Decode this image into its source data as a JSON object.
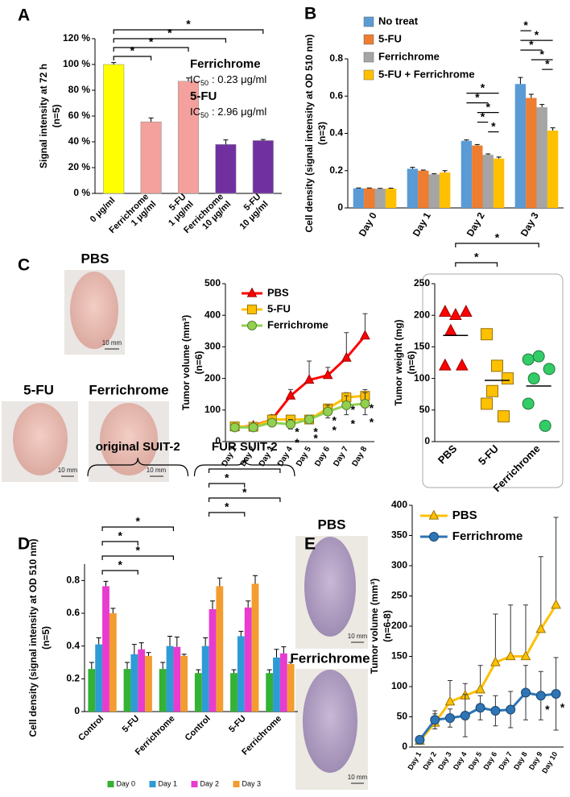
{
  "photos": [
    {
      "label": "PBS",
      "scale_bar": "10 mm"
    },
    {
      "label": "5-FU",
      "scale_bar": "10 mm"
    },
    {
      "label": "Ferrichrome",
      "scale_bar": "10 mm"
    },
    {
      "label": "PBS",
      "scale_bar": "10 mm"
    },
    {
      "label": "Ferrichrome",
      "scale_bar": "10 mm"
    }
  ],
  "chart_data": [
    {
      "type": "bar",
      "panel": "A",
      "categories": [
        [
          "0 μg/ml"
        ],
        [
          "Ferrichrome",
          "1 μg/ml"
        ],
        [
          "5-FU",
          "1 μg/ml"
        ],
        [
          "Ferrichrome",
          "10 μg/ml"
        ],
        [
          "5-FU",
          "10 μg/ml"
        ]
      ],
      "values": [
        100,
        55.5,
        87,
        38,
        41
      ],
      "errors": [
        1.5,
        3,
        2.5,
        3.5,
        0.8
      ],
      "colors": [
        "#ffff00",
        "#f4a09c",
        "#f4a09c",
        "#7030a0",
        "#7030a0"
      ],
      "ylabel": [
        "Signal intensity at 72 h",
        "(n=5)"
      ],
      "ylim": [
        0,
        120
      ],
      "yticks": [
        {
          "value": 0,
          "label": "0 %"
        },
        {
          "value": 20,
          "label": "20 %"
        },
        {
          "value": 40,
          "label": "40 %"
        },
        {
          "value": 60,
          "label": "60 %"
        },
        {
          "value": 80,
          "label": "80 %"
        },
        {
          "value": 100,
          "label": "100 %"
        },
        {
          "value": 120,
          "label": "120 %"
        }
      ],
      "significance": [
        {
          "from": 0,
          "to": 1,
          "label": "*"
        },
        {
          "from": 0,
          "to": 2,
          "label": "*"
        },
        {
          "from": 0,
          "to": 3,
          "label": "*"
        },
        {
          "from": 0,
          "to": 4,
          "label": "*"
        }
      ],
      "annotations": [
        {
          "title": "Ferrichrome",
          "prefix": "IC",
          "subscript": "50",
          "text": ": 0.23 μg/ml"
        },
        {
          "title": "5-FU",
          "prefix": "IC",
          "subscript": "50",
          "text": ": 2.96 μg/ml"
        }
      ]
    },
    {
      "type": "bar",
      "panel": "B",
      "categories": [
        "Day 0",
        "Day 1",
        "Day 2",
        "Day 3"
      ],
      "series": [
        {
          "name": "No treat",
          "color": "#5b9bd5",
          "values": [
            0.105,
            0.21,
            0.36,
            0.665
          ],
          "errors": [
            0.002,
            0.008,
            0.005,
            0.035
          ]
        },
        {
          "name": "5-FU",
          "color": "#ed7d31",
          "values": [
            0.105,
            0.2,
            0.335,
            0.59
          ],
          "errors": [
            0.002,
            0.003,
            0.005,
            0.02
          ]
        },
        {
          "name": "Ferrichrome",
          "color": "#a5a5a5",
          "values": [
            0.103,
            0.18,
            0.285,
            0.54
          ],
          "errors": [
            0.002,
            0.003,
            0.005,
            0.015
          ]
        },
        {
          "name": "5-FU + Ferrichrome",
          "color": "#ffc000",
          "values": [
            0.104,
            0.19,
            0.265,
            0.415
          ],
          "errors": [
            0.002,
            0.01,
            0.008,
            0.015
          ]
        }
      ],
      "ylabel": [
        "Cell density (signal intensity at OD 510 nm)",
        "(n=3)"
      ],
      "ylim": [
        0,
        0.8
      ],
      "yticks": [
        0,
        0.2,
        0.4,
        0.6,
        0.8
      ],
      "legend": "upper left",
      "significance": [
        {
          "category": 2,
          "from": 2,
          "to": 3,
          "label": "*"
        },
        {
          "category": 2,
          "from": 1,
          "to": 2,
          "label": "*"
        },
        {
          "category": 2,
          "from": 1,
          "to": 3,
          "label": "*"
        },
        {
          "category": 2,
          "from": 0,
          "to": 2,
          "label": "*"
        },
        {
          "category": 2,
          "from": 0,
          "to": 3,
          "label": "*"
        },
        {
          "category": 3,
          "from": 2,
          "to": 3,
          "label": "*"
        },
        {
          "category": 3,
          "from": 1,
          "to": 3,
          "label": "*"
        },
        {
          "category": 3,
          "from": 0,
          "to": 2,
          "label": "*"
        },
        {
          "category": 3,
          "from": 0,
          "to": 3,
          "label": "*"
        },
        {
          "category": 3,
          "from": 0,
          "to": 1,
          "label": "*"
        }
      ]
    },
    {
      "type": "line",
      "panel": "C",
      "categories": [
        "Day 1",
        "Day 2",
        "Day 3",
        "Day 4",
        "Day 5",
        "Day 6",
        "Day 7",
        "Day 8"
      ],
      "series": [
        {
          "name": "PBS",
          "color": "#ff0000",
          "marker": "triangle",
          "values": [
            45,
            50,
            70,
            145,
            195,
            210,
            265,
            335
          ],
          "errors": [
            5,
            8,
            15,
            20,
            60,
            25,
            80,
            70
          ],
          "error_direction": "up"
        },
        {
          "name": "5-FU",
          "color": "#ffc000",
          "marker": "square",
          "values": [
            48,
            47,
            70,
            70,
            70,
            105,
            140,
            145
          ],
          "errors": [
            5,
            5,
            8,
            10,
            8,
            10,
            15,
            20
          ],
          "error_direction": "both"
        },
        {
          "name": "Ferrichrome",
          "color": "#92d050",
          "marker": "circle",
          "values": [
            45,
            45,
            60,
            55,
            70,
            95,
            115,
            120
          ],
          "errors": [
            5,
            5,
            8,
            15,
            12,
            20,
            30,
            35
          ],
          "error_direction": "both"
        }
      ],
      "ylabel": [
        "Tumor volume (mm³)",
        "(n=6)"
      ],
      "ylim": [
        0,
        500
      ],
      "yticks": [
        0,
        100,
        200,
        300,
        400,
        500
      ],
      "legend": "upper left",
      "significance": [
        {
          "category": 3,
          "series": 1,
          "label": "*"
        },
        {
          "category": 3,
          "series": 2,
          "label": "*"
        },
        {
          "category": 4,
          "series": 1,
          "label": "*"
        },
        {
          "category": 4,
          "series": 2,
          "label": "*"
        },
        {
          "category": 5,
          "series": 1,
          "label": "*"
        },
        {
          "category": 5,
          "series": 2,
          "label": "*"
        },
        {
          "category": 6,
          "series": 1,
          "label": "*"
        },
        {
          "category": 6,
          "series": 2,
          "label": "*"
        },
        {
          "category": 7,
          "series": 1,
          "label": "*"
        },
        {
          "category": 7,
          "series": 2,
          "label": "*"
        }
      ]
    },
    {
      "type": "dot",
      "categories": [
        "PBS",
        "5-FU",
        "Ferrichrome"
      ],
      "points": [
        [
          205,
          200,
          205,
          175,
          120,
          120
        ],
        [
          170,
          120,
          100,
          80,
          60,
          40
        ],
        [
          130,
          135,
          115,
          100,
          60,
          25
        ]
      ],
      "means": [
        168,
        97,
        88
      ],
      "markers": [
        "triangle",
        "square",
        "circle"
      ],
      "colors": [
        "#ff0000",
        "#ffc000",
        "#33cc66"
      ],
      "ylabel": [
        "Tumor weight (mg)",
        "(n=6)"
      ],
      "ylim": [
        0,
        250
      ],
      "yticks": [
        0,
        50,
        100,
        150,
        200,
        250
      ],
      "significance": [
        {
          "from": 0,
          "to": 1,
          "label": "*"
        },
        {
          "from": 0,
          "to": 2,
          "label": "*"
        }
      ]
    },
    {
      "type": "bar",
      "panel": "D",
      "categories": [
        "Control",
        "5-FU",
        "Ferrichrome",
        "Control",
        "5-FU",
        "Ferrichrome"
      ],
      "groups": [
        {
          "label": "original SUIT-2",
          "from": 0,
          "to": 2
        },
        {
          "label": "FUR SUIT-2",
          "from": 3,
          "to": 5
        }
      ],
      "series": [
        {
          "name": "Day 0",
          "color": "#33b233",
          "values": [
            0.26,
            0.26,
            0.26,
            0.235,
            0.235,
            0.235
          ],
          "errors": [
            0.04,
            0.04,
            0.04,
            0.02,
            0.02,
            0.02
          ]
        },
        {
          "name": "Day 1",
          "color": "#2e9bd6",
          "values": [
            0.41,
            0.35,
            0.4,
            0.4,
            0.46,
            0.33
          ],
          "errors": [
            0.04,
            0.06,
            0.06,
            0.05,
            0.03,
            0.05
          ]
        },
        {
          "name": "Day 2",
          "color": "#e83bd0",
          "values": [
            0.765,
            0.38,
            0.395,
            0.625,
            0.635,
            0.355
          ],
          "errors": [
            0.03,
            0.04,
            0.06,
            0.05,
            0.04,
            0.04
          ]
        },
        {
          "name": "Day 3",
          "color": "#f39c2f",
          "values": [
            0.6,
            0.34,
            0.34,
            0.765,
            0.78,
            0.29
          ],
          "errors": [
            0.03,
            0.02,
            0.01,
            0.05,
            0.05,
            0.01
          ]
        }
      ],
      "ylabel": [
        "Cell density (signal intensity at OD 510 nm)",
        "(n=5)"
      ],
      "ylim": [
        0,
        0.9
      ],
      "yticks": [
        0,
        0.2,
        0.4,
        0.6,
        0.8
      ],
      "legend": "bottom",
      "significance": [
        {
          "from": 0,
          "to": 1,
          "label": "*"
        },
        {
          "from": 0,
          "to": 2,
          "label": "*"
        },
        {
          "from": 0,
          "to": 1,
          "label": "*"
        },
        {
          "from": 0,
          "to": 2,
          "label": "*"
        },
        {
          "from": 3,
          "to": 4,
          "label": "*"
        },
        {
          "from": 3,
          "to": 5,
          "label": "*"
        },
        {
          "from": 3,
          "to": 4,
          "label": "*"
        },
        {
          "from": 3,
          "to": 5,
          "label": "*"
        }
      ]
    },
    {
      "type": "line",
      "panel": "E",
      "categories": [
        "Day 1",
        "Day 2",
        "Day 3",
        "Day 4",
        "Day 5",
        "Day 6",
        "Day 7",
        "Day 8",
        "Day 9",
        "Day 10"
      ],
      "series": [
        {
          "name": "PBS",
          "color": "#ffc000",
          "marker": "triangle",
          "values": [
            10,
            40,
            75,
            85,
            95,
            140,
            150,
            150,
            195,
            235
          ],
          "errors": [
            2,
            15,
            35,
            20,
            40,
            80,
            85,
            85,
            120,
            145
          ],
          "error_direction": "up"
        },
        {
          "name": "Ferrichrome",
          "color": "#2e75b6",
          "marker": "circle",
          "values": [
            12,
            45,
            48,
            52,
            65,
            60,
            62,
            90,
            85,
            88
          ],
          "errors": [
            2,
            15,
            15,
            35,
            20,
            25,
            30,
            45,
            40,
            60
          ],
          "error_direction": "both"
        }
      ],
      "ylabel": [
        "Tumor volume (mm³)",
        "(n=6-8)"
      ],
      "ylim": [
        0,
        400
      ],
      "yticks": [
        0,
        50,
        100,
        150,
        200,
        250,
        300,
        350,
        400
      ],
      "legend": "upper left",
      "significance": [
        {
          "category": 8,
          "series": 1,
          "label": "*"
        },
        {
          "category": 9,
          "series": 1,
          "label": "*"
        }
      ]
    }
  ]
}
